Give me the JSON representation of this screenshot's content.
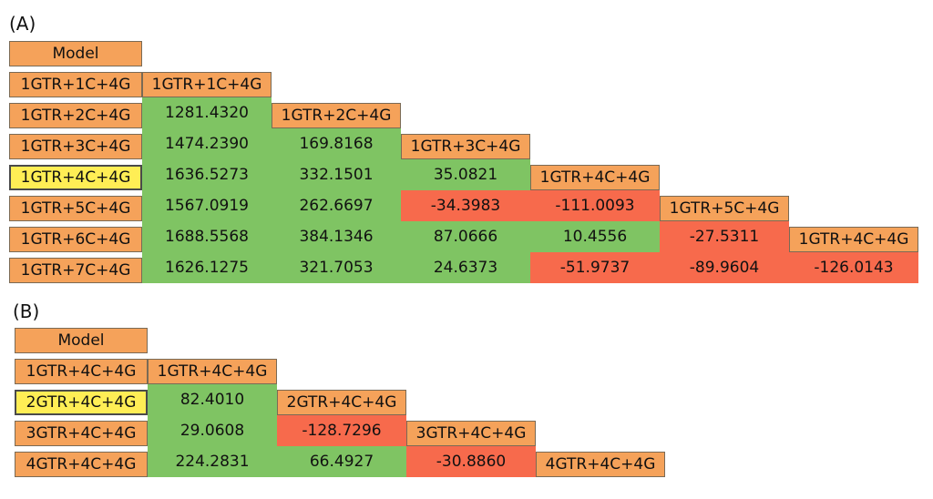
{
  "panels": [
    {
      "label": "(A)",
      "corner": "Model",
      "row_models": [
        "1GTR+1C+4G",
        "1GTR+2C+4G",
        "1GTR+3C+4G",
        "1GTR+4C+4G",
        "1GTR+5C+4G",
        "1GTR+6C+4G",
        "1GTR+7C+4G"
      ],
      "highlighted_row": 3,
      "col_models": [
        "1GTR+1C+4G",
        "1GTR+2C+4G",
        "1GTR+3C+4G",
        "1GTR+4C+4G",
        "1GTR+5C+4G",
        "1GTR+4C+4G"
      ],
      "values": [
        [],
        [
          "1281.4320"
        ],
        [
          "1474.2390",
          "169.8168"
        ],
        [
          "1636.5273",
          "332.1501",
          "35.0821"
        ],
        [
          "1567.0919",
          "262.6697",
          "-34.3983",
          "-111.0093"
        ],
        [
          "1688.5568",
          "384.1346",
          "87.0666",
          "10.4556",
          "-27.5311"
        ],
        [
          "1626.1275",
          "321.7053",
          "24.6373",
          "-51.9737",
          "-89.9604",
          "-126.0143"
        ]
      ]
    },
    {
      "label": "(B)",
      "corner": "Model",
      "row_models": [
        "1GTR+4C+4G",
        "2GTR+4C+4G",
        "3GTR+4C+4G",
        "4GTR+4C+4G"
      ],
      "highlighted_row": 1,
      "col_models": [
        "1GTR+4C+4G",
        "2GTR+4C+4G",
        "3GTR+4C+4G",
        "4GTR+4C+4G"
      ],
      "values": [
        [],
        [
          "82.4010"
        ],
        [
          "29.0608",
          "-128.7296"
        ],
        [
          "224.2831",
          "66.4927",
          "-30.8860"
        ]
      ]
    }
  ],
  "colors": {
    "header": "#f5a25a",
    "highlight": "#ffee55",
    "positive": "#7fc463",
    "negative": "#f76a4c"
  }
}
